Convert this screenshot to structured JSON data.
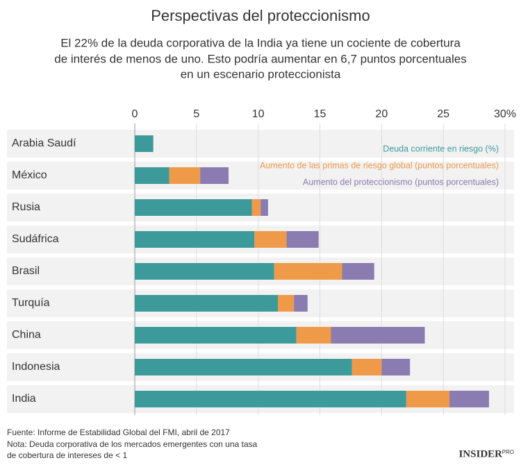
{
  "chart_data": {
    "type": "stacked-bar-horizontal",
    "title": "Perspectivas del proteccionismo",
    "subtitle": [
      "El 22% de la deuda corporativa de la India ya tiene un cociente de cobertura",
      "de interés de menos de uno. Esto podría aumentar en 6,7 puntos porcentuales",
      "en un escenario proteccionista"
    ],
    "categories": [
      "Arabia Saudí",
      "México",
      "Rusia",
      "Sudáfrica",
      "Brasil",
      "Turquía",
      "China",
      "Indonesia",
      "India"
    ],
    "series": [
      {
        "name": "Deuda corriente en riesgo (%)",
        "color": "#3d9a9b",
        "values": [
          1.5,
          2.8,
          9.5,
          9.7,
          11.3,
          11.6,
          13.1,
          17.6,
          22
        ]
      },
      {
        "name": "Aumento de las primas de riesgo global (puntos porcentuales)",
        "color": "#ee9a49",
        "values": [
          0,
          2.5,
          0.7,
          2.6,
          5.5,
          1.3,
          2.8,
          2.4,
          3.5
        ]
      },
      {
        "name": "Aumento del proteccionismo (puntos porcentuales)",
        "color": "#8a7bb0",
        "values": [
          0,
          2.3,
          0.6,
          2.6,
          2.6,
          1.1,
          7.6,
          2.3,
          3.2
        ]
      }
    ],
    "xlim": [
      0,
      30
    ],
    "xticks": [
      0,
      5,
      10,
      15,
      20,
      25,
      {
        "value": 30,
        "label": "30%"
      }
    ],
    "grid": true,
    "legend": "top-right",
    "source": "Fuente: Informe de Estabilidad Global del FMI, abril de 2017",
    "note": [
      "Nota: Deuda corporativa de los mercados emergentes con una tasa",
      "de cobertura de intereses de < 1"
    ],
    "logo": {
      "name": "INSIDER",
      "tag": "PRO"
    }
  }
}
